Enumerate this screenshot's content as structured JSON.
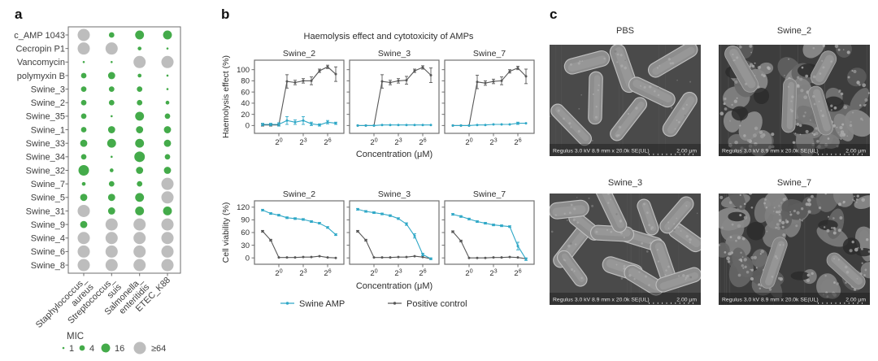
{
  "panels": {
    "a_label": "a",
    "b_label": "b",
    "c_label": "c"
  },
  "chart_data": [
    {
      "type": "bubble",
      "name": "mic_dotplot",
      "rows": [
        "c_AMP 1043",
        "Cecropin P1",
        "Vancomycin",
        "polymyxin B",
        "Swine_3",
        "Swine_2",
        "Swine_35",
        "Swine_1",
        "Swine_33",
        "Swine_34",
        "Swine_32",
        "Swine_7",
        "Swine_5",
        "Swine_31",
        "Swine_9",
        "Swine_4",
        "Swine_6",
        "Swine_8"
      ],
      "columns": [
        "Staphylococcus_aureus",
        "Streptococcus_suis",
        "Salmonella_enteritidis",
        "ETEC_K88"
      ],
      "column_label_lines": [
        [
          "Staphylococcus_",
          "aureus"
        ],
        [
          "Streptococcus_",
          "suis"
        ],
        [
          "Salmonella_",
          "enteritidis"
        ],
        [
          "ETEC_K88"
        ]
      ],
      "mic": [
        [
          64,
          4,
          16,
          16
        ],
        [
          64,
          64,
          2,
          1
        ],
        [
          1,
          1,
          64,
          64
        ],
        [
          4,
          8,
          2,
          1
        ],
        [
          4,
          4,
          4,
          1
        ],
        [
          4,
          4,
          4,
          2
        ],
        [
          4,
          1,
          16,
          4
        ],
        [
          4,
          8,
          8,
          8
        ],
        [
          8,
          16,
          16,
          8
        ],
        [
          4,
          1,
          32,
          4
        ],
        [
          32,
          2,
          8,
          8
        ],
        [
          2,
          4,
          4,
          64
        ],
        [
          8,
          8,
          16,
          64
        ],
        [
          64,
          8,
          16,
          16
        ],
        [
          8,
          64,
          64,
          64
        ],
        [
          64,
          64,
          64,
          64
        ],
        [
          64,
          64,
          64,
          64
        ],
        [
          64,
          64,
          64,
          64
        ]
      ],
      "legend": {
        "title": "MIC",
        "items": [
          {
            "label": "1",
            "value": 1
          },
          {
            "label": "4",
            "value": 4
          },
          {
            "label": "16",
            "value": 16
          },
          {
            "label": "≥64",
            "value": 64
          }
        ]
      },
      "colors": {
        "low": "#44ab4a",
        "high": "#bdbdbd"
      }
    },
    {
      "type": "line",
      "name": "haemolysis",
      "title": "Haemolysis effect and cytotoxicity of AMPs",
      "ylabel": "Haemolysis effect (%)",
      "xlabel": "Concentration (μM)",
      "ylim": [
        -14,
        117
      ],
      "yticks": [
        0,
        20,
        40,
        60,
        80,
        100
      ],
      "x_log2": [
        -2,
        -1,
        0,
        1,
        2,
        3,
        4,
        5,
        6,
        7
      ],
      "xtick_log2": [
        0,
        3,
        6
      ],
      "xticklabels": [
        "2⁰",
        "2³",
        "2⁶"
      ],
      "subplots": [
        {
          "title": "Swine_2",
          "swine_amp": [
            2,
            2,
            2,
            9,
            6,
            9,
            3,
            1,
            6,
            4
          ],
          "swine_amp_err": [
            2,
            2,
            3,
            7,
            4,
            7,
            3,
            2,
            3,
            2
          ],
          "positive_control": [
            1,
            1,
            1,
            79,
            77,
            80,
            80,
            98,
            105,
            92
          ],
          "positive_control_err": [
            2,
            2,
            2,
            12,
            4,
            4,
            7,
            3,
            3,
            13
          ]
        },
        {
          "title": "Swine_3",
          "swine_amp": [
            0,
            0,
            0,
            1,
            1,
            1,
            1,
            1,
            1,
            1
          ],
          "swine_amp_err": [
            1,
            1,
            1,
            1,
            1,
            1,
            1,
            1,
            1,
            1
          ],
          "positive_control": [
            0,
            0,
            0,
            79,
            77,
            80,
            81,
            98,
            104,
            90
          ],
          "positive_control_err": [
            1,
            1,
            1,
            12,
            4,
            4,
            7,
            3,
            3,
            13
          ]
        },
        {
          "title": "Swine_7",
          "swine_amp": [
            0,
            0,
            0,
            1,
            1,
            2,
            2,
            2,
            4,
            4
          ],
          "swine_amp_err": [
            1,
            1,
            1,
            1,
            1,
            1,
            1,
            1,
            2,
            1
          ],
          "positive_control": [
            0,
            0,
            0,
            78,
            76,
            79,
            80,
            97,
            103,
            88
          ],
          "positive_control_err": [
            1,
            1,
            1,
            12,
            4,
            4,
            7,
            3,
            3,
            13
          ]
        }
      ]
    },
    {
      "type": "line",
      "name": "cell_viability",
      "ylabel": "Cell viability (%)",
      "xlabel": "Concentration (μM)",
      "ylim": [
        -15,
        135
      ],
      "yticks": [
        0,
        30,
        60,
        90,
        120
      ],
      "x_log2": [
        -2,
        -1,
        0,
        1,
        2,
        3,
        4,
        5,
        6,
        7
      ],
      "xtick_log2": [
        0,
        3,
        6
      ],
      "xticklabels": [
        "2⁰",
        "2³",
        "2⁶"
      ],
      "subplots": [
        {
          "title": "Swine_2",
          "swine_amp": [
            113,
            105,
            101,
            95,
            93,
            91,
            86,
            82,
            72,
            55
          ],
          "swine_amp_err": [
            2,
            2,
            2,
            2,
            2,
            2,
            2,
            2,
            2,
            2
          ],
          "positive_control": [
            63,
            42,
            1,
            1,
            1,
            2,
            2,
            4,
            1,
            0
          ],
          "positive_control_err": [
            2,
            2,
            1,
            1,
            1,
            1,
            1,
            1,
            1,
            1
          ]
        },
        {
          "title": "Swine_3",
          "swine_amp": [
            115,
            110,
            107,
            104,
            100,
            93,
            80,
            52,
            8,
            -2
          ],
          "swine_amp_err": [
            2,
            2,
            2,
            2,
            2,
            2,
            3,
            5,
            3,
            2
          ],
          "positive_control": [
            63,
            42,
            1,
            1,
            1,
            2,
            2,
            4,
            2,
            -2
          ],
          "positive_control_err": [
            2,
            2,
            1,
            1,
            1,
            1,
            1,
            1,
            1,
            1
          ]
        },
        {
          "title": "Swine_7",
          "swine_amp": [
            103,
            98,
            92,
            86,
            82,
            78,
            76,
            74,
            28,
            -3
          ],
          "swine_amp_err": [
            2,
            2,
            2,
            2,
            2,
            2,
            2,
            2,
            9,
            3
          ],
          "positive_control": [
            62,
            40,
            0,
            0,
            0,
            1,
            1,
            2,
            1,
            -2
          ],
          "positive_control_err": [
            2,
            2,
            1,
            1,
            1,
            1,
            1,
            1,
            1,
            1
          ]
        }
      ],
      "legend": [
        {
          "label": "Swine AMP",
          "color": "#2fa8c7"
        },
        {
          "label": "Positive control",
          "color": "#575757"
        }
      ],
      "legend_position": "bottom"
    }
  ],
  "panel_c": {
    "images": [
      {
        "title": "PBS",
        "morphology": "intact-sparse",
        "caption_left": "Regulus 3.0 kV 8.9 mm x 20.0k SE(UL)",
        "caption_right": "2.00 μm"
      },
      {
        "title": "Swine_2",
        "morphology": "damaged",
        "caption_left": "Regulus 3.0 kV 8.9 mm x 20.0k SE(UL)",
        "caption_right": "2.00 μm"
      },
      {
        "title": "Swine_3",
        "morphology": "intact-dense",
        "caption_left": "Regulus 3.0 kV 8.9 mm x 20.0k SE(UL)",
        "caption_right": "2.00 μm"
      },
      {
        "title": "Swine_7",
        "morphology": "damaged-heavy",
        "caption_left": "Regulus 3.0 kV 8.9 mm x 20.0k SE(UL)",
        "caption_right": "2.00 μm"
      }
    ]
  }
}
